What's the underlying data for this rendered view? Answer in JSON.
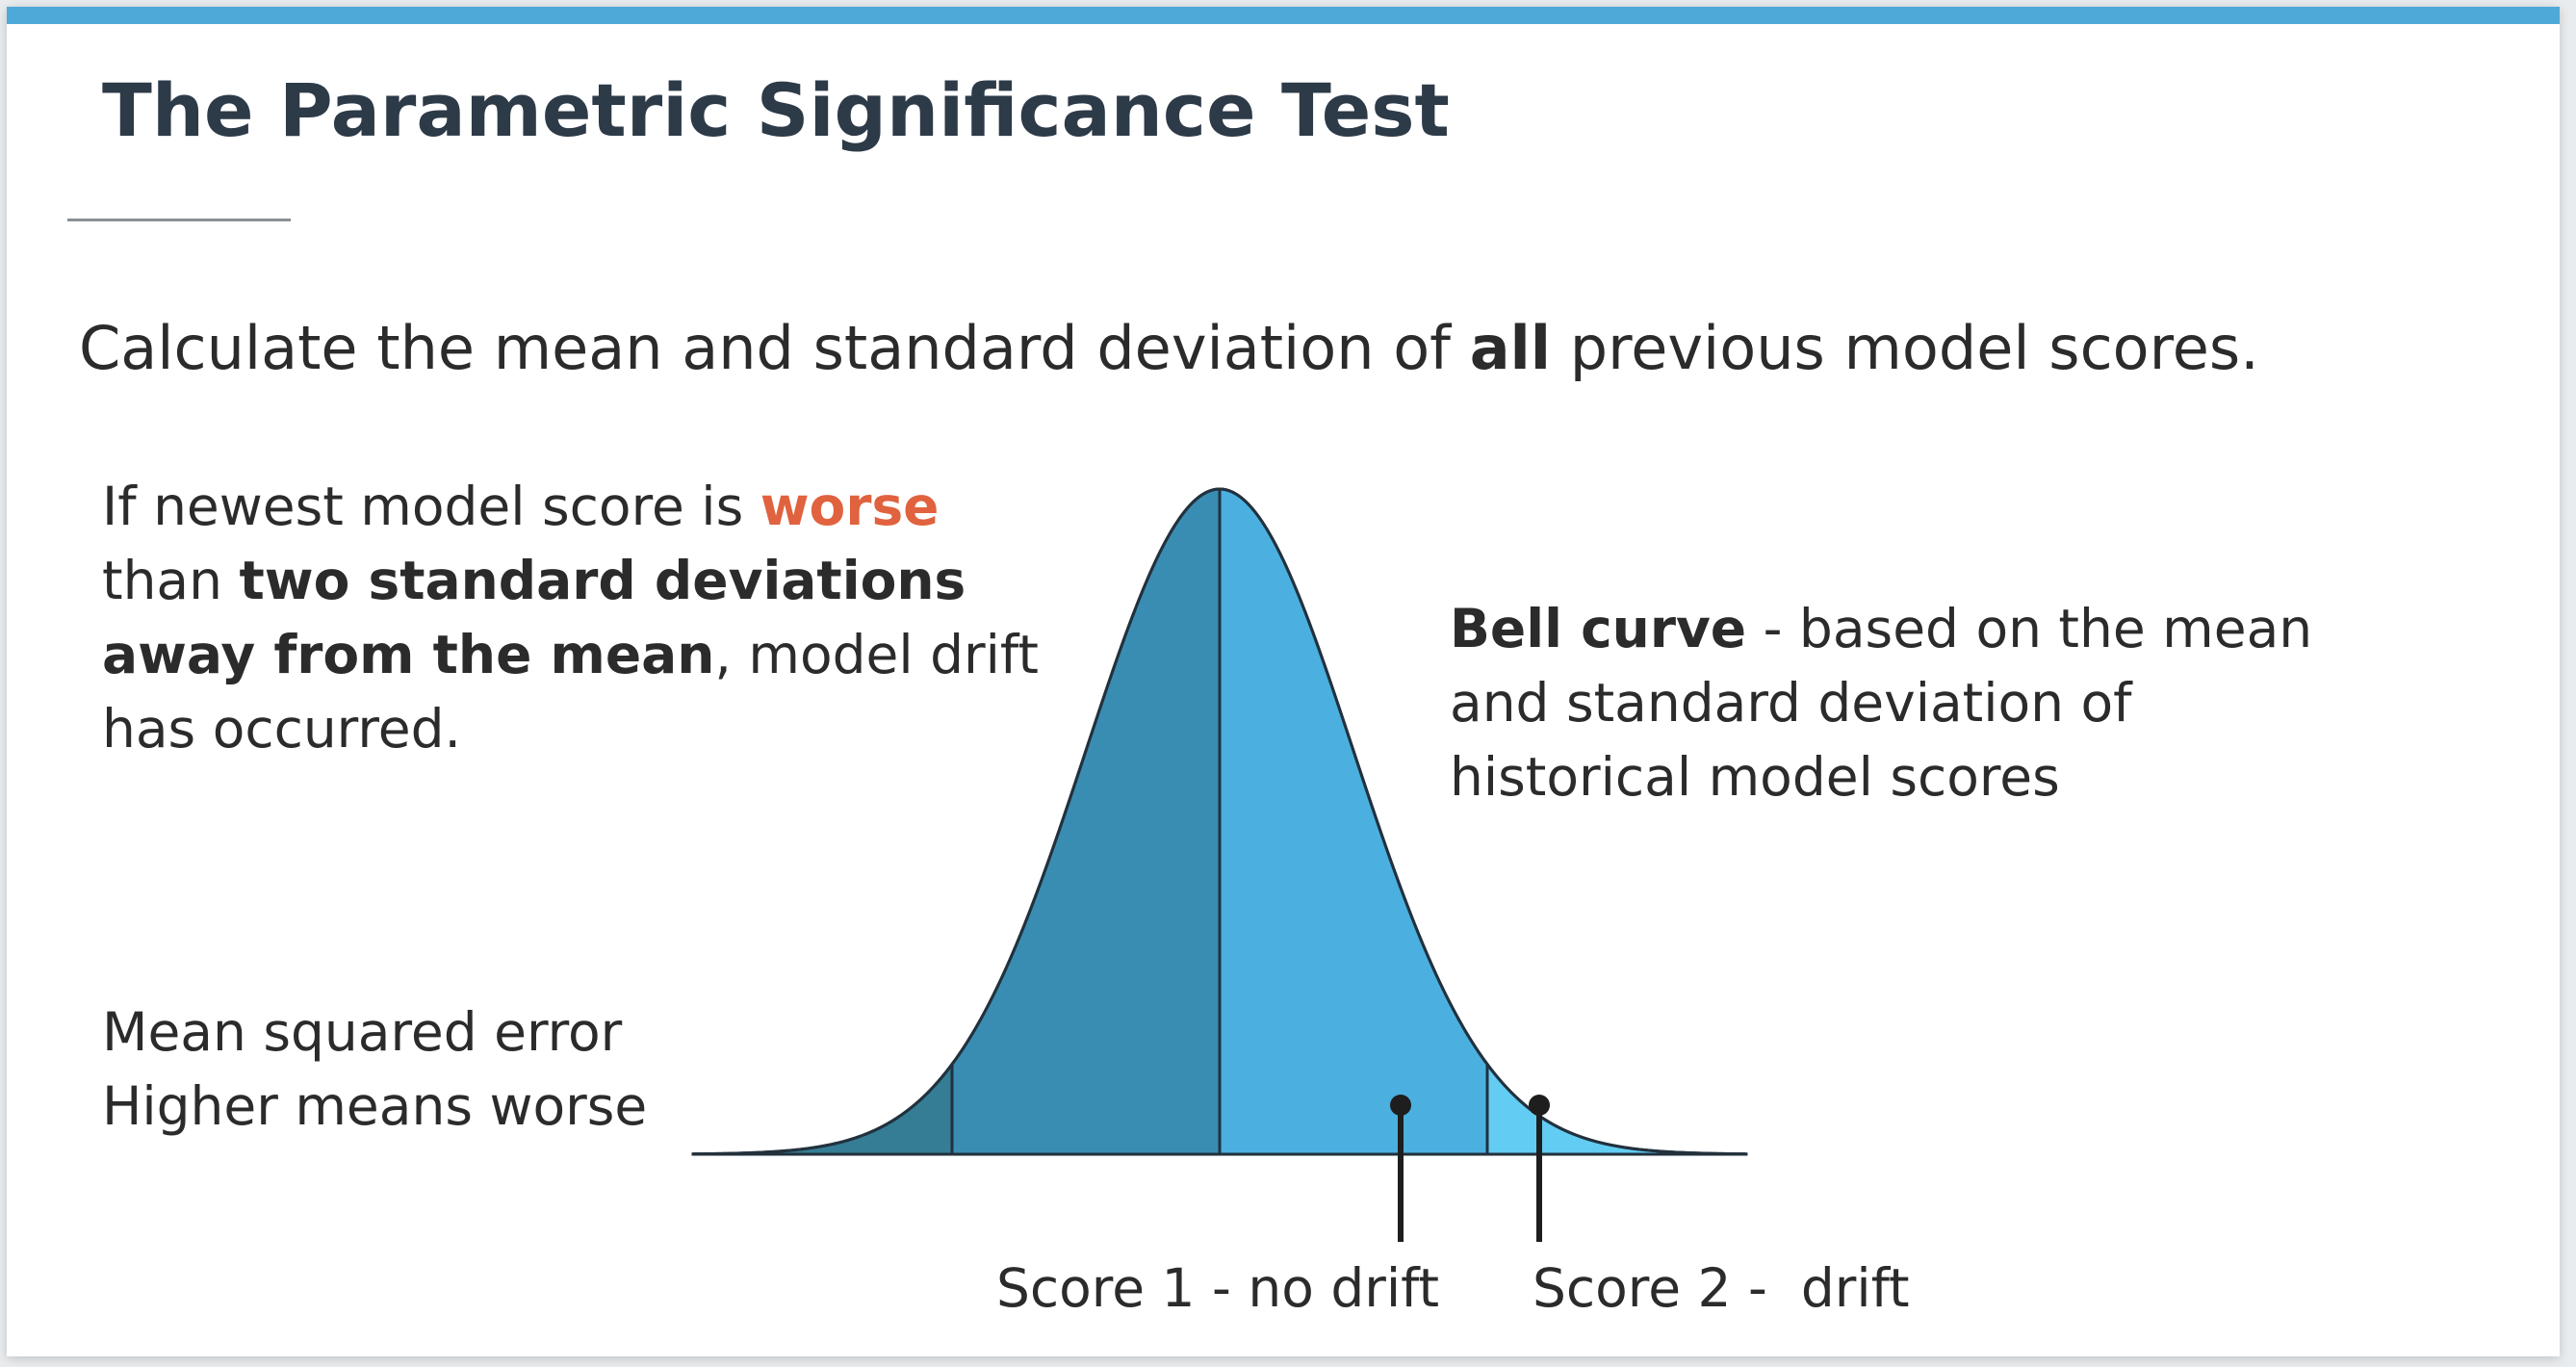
{
  "title": "The Parametric Significance Test",
  "subtitle": {
    "before": "Calculate the mean and standard deviation of ",
    "bold": "all",
    "after": " previous model scores."
  },
  "rule": {
    "part1": "If newest model score is ",
    "worse": "worse",
    "part2": " than ",
    "bold": "two standard deviations away from the mean",
    "part3": ", model drift has occurred."
  },
  "bell_note": {
    "bold": "Bell curve",
    "text": " - based on the mean and standard deviation of historical model scores"
  },
  "metric": {
    "line1": "Mean squared error",
    "line2": "Higher means worse"
  },
  "scores": [
    {
      "label": "Score 1 - no drift"
    },
    {
      "label": "Score 2 -  drift"
    }
  ],
  "colors": {
    "accent_bar": "#4fa9d8",
    "worse": "#e0623e",
    "tail_left": "#347d95",
    "band_left": "#3a8db2",
    "band_right": "#4bb0df",
    "tail_right": "#62ccf2",
    "text": "#2b2b2b",
    "title": "#2d3a48"
  }
}
